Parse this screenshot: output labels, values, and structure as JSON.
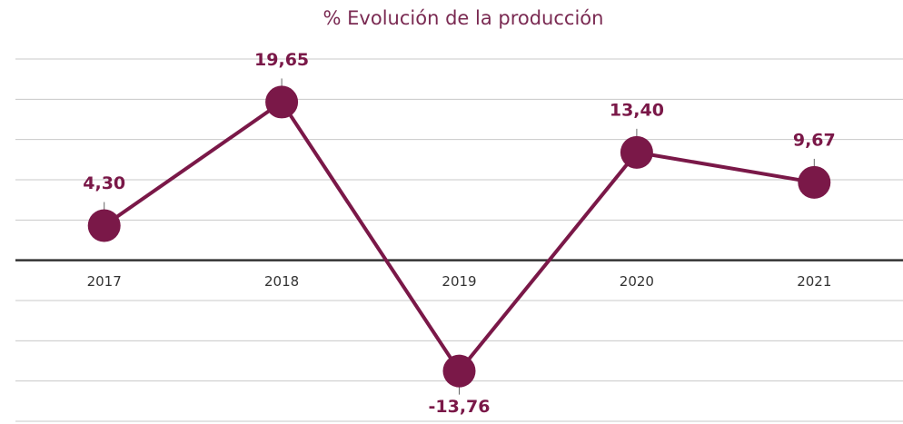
{
  "chart_data": {
    "type": "line",
    "title": "% Evolución de la producción",
    "categories": [
      "2017",
      "2018",
      "2019",
      "2020",
      "2021"
    ],
    "series": [
      {
        "name": "% Evolución de la producción",
        "color": "#7a1848",
        "values": [
          4.3,
          19.65,
          -13.76,
          13.4,
          9.67
        ],
        "value_labels": [
          "4,30",
          "19,65",
          "-13,76",
          "13,40",
          "9,67"
        ]
      }
    ],
    "ylim": [
      -20,
      25
    ],
    "yticks": [
      -20,
      -15,
      -10,
      -5,
      0,
      5,
      10,
      15,
      20,
      25
    ],
    "grid": true
  }
}
